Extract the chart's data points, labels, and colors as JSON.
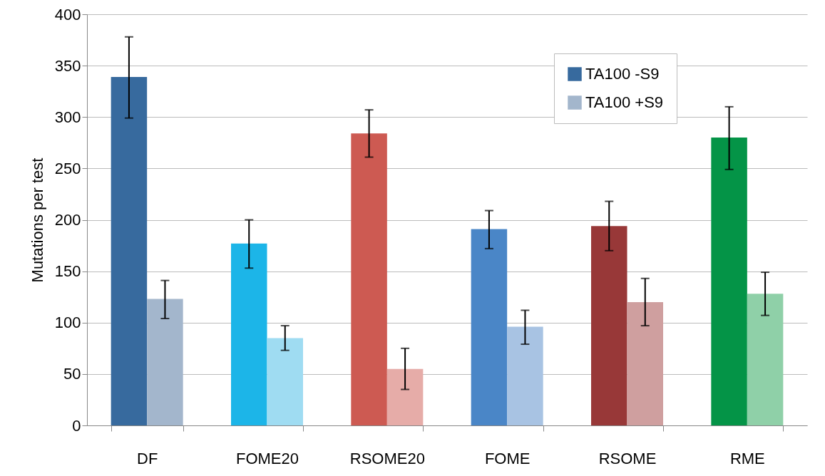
{
  "chart_data": {
    "type": "bar",
    "ylabel": "Mutations per test",
    "categories": [
      "DF",
      "FOME20",
      "RSOME20",
      "FOME",
      "RSOME",
      "RME"
    ],
    "series": [
      {
        "name": "TA100 -S9",
        "color": "#376a9e",
        "colors": [
          "#376a9e",
          "#1cb5e8",
          "#cd5a52",
          "#4a86c7",
          "#983838",
          "#049447"
        ],
        "values": [
          339,
          177,
          284,
          191,
          194,
          280
        ],
        "errors": [
          [
            299,
            378
          ],
          [
            153,
            200
          ],
          [
            261,
            307
          ],
          [
            172,
            209
          ],
          [
            170,
            218
          ],
          [
            249,
            310
          ]
        ]
      },
      {
        "name": "TA100 +S9",
        "color": "#a3b6cc",
        "colors": [
          "#a3b6cc",
          "#9fdcf2",
          "#e6aca8",
          "#a8c3e3",
          "#cf9f9f",
          "#8fd0a8"
        ],
        "values": [
          123,
          85,
          55,
          96,
          120,
          128
        ],
        "errors": [
          [
            104,
            141
          ],
          [
            73,
            97
          ],
          [
            35,
            75
          ],
          [
            79,
            112
          ],
          [
            97,
            143
          ],
          [
            107,
            149
          ]
        ]
      }
    ],
    "ylim": [
      0,
      400
    ],
    "yticks": [
      0,
      50,
      100,
      150,
      200,
      250,
      300,
      350,
      400
    ],
    "grid": "y",
    "legend": "top right"
  }
}
